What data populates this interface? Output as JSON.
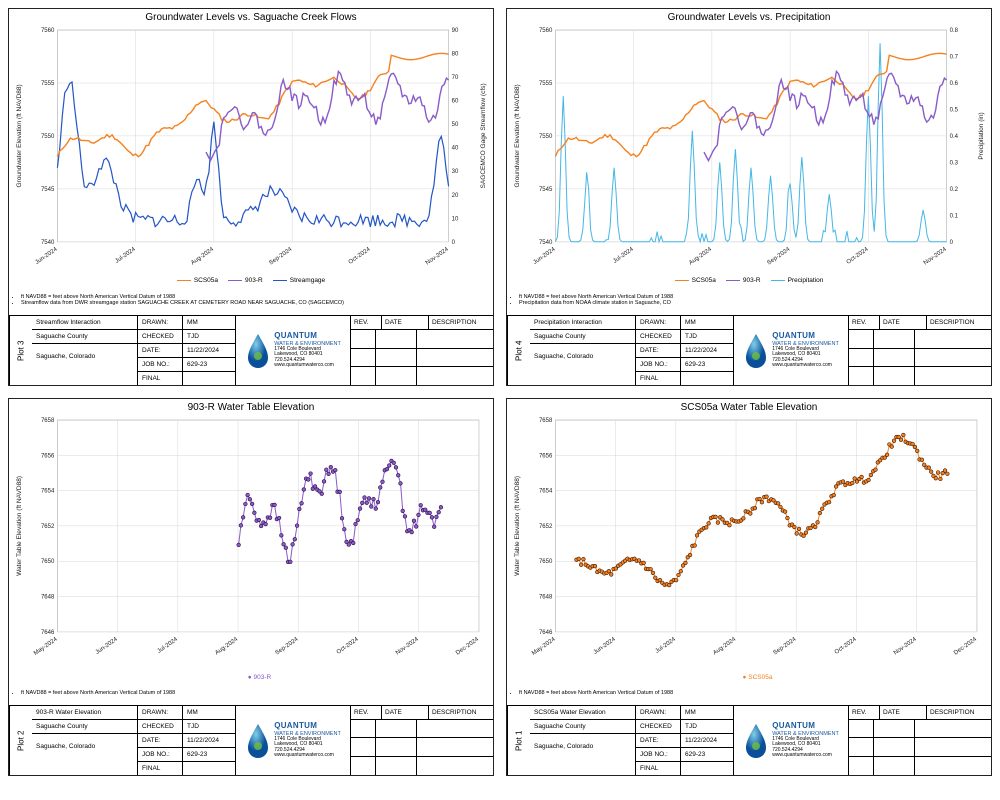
{
  "company": {
    "name": "QUANTUM",
    "subtitle": "WATER & ENVIRONMENT",
    "address1": "1746 Cole Boulevard",
    "address2": "Lakewood, CO 80401",
    "phone": "720.524.4294",
    "web": "www.quantumwaterco.com",
    "logo_gradient_inner": "#7fcfe8",
    "logo_gradient_outer": "#0a4f9a"
  },
  "meta_labels": {
    "drawn": "DRAWN:",
    "checked": "CHECKED",
    "date": "DATE:",
    "job": "JOB NO.:",
    "status_label": "FINAL",
    "rev": "REV.",
    "date2": "DATE",
    "desc": "DESCRIPTION"
  },
  "meta": {
    "drawn": "MM",
    "checked": "TJD",
    "date": "11/22/2024",
    "job": "629-23"
  },
  "project_line2": "Saguache County",
  "project_line3": "Saguache, Colorado",
  "footnote_navd": "ft NAVD88 = feet above North American Vertical Datum of 1988",
  "plot3": {
    "plotlabel": "Plot 3",
    "title": "Groundwater Levels vs. Saguache Creek Flows",
    "ylabel_left": "Groundwater Elevation (ft NAVD88)",
    "ylabel_right": "SAGCEMCO Gage Streamflow (cfs)",
    "ylim_left": [
      7540,
      7560
    ],
    "ytick_left": [
      7540,
      7545,
      7550,
      7555,
      7560
    ],
    "ylim_right": [
      0,
      90
    ],
    "ytick_right": [
      0,
      10,
      20,
      30,
      40,
      50,
      60,
      70,
      80,
      90
    ],
    "xticks": [
      "Jun-2024",
      "Jul-2024",
      "Aug-2024",
      "Sep-2024",
      "Oct-2024",
      "Nov-2024"
    ],
    "grid_color": "#d7d7d7",
    "background_color": "#ffffff",
    "series": {
      "scs05a": {
        "label": "SCS05a",
        "color": "#f58220",
        "width": 1.4
      },
      "r903": {
        "label": "903-R",
        "color": "#8a5cc8",
        "width": 1.4
      },
      "stream": {
        "label": "Streamgage",
        "color": "#2456c7",
        "width": 1.2
      }
    },
    "footnote2": "Streamflow data from DWR streamgage station SAGUACHE CREEK AT CEMETERY ROAD NEAR SAGUACHE, CO (SAGCEMCO)",
    "project_line1": "Streamflow Interaction"
  },
  "plot4": {
    "plotlabel": "Plot 4",
    "title": "Groundwater Levels vs. Precipitation",
    "ylabel_left": "Groundwater Elevation (ft NAVD88)",
    "ylabel_right": "Precipitation (in)",
    "ylim_left": [
      7540,
      7560
    ],
    "ytick_left": [
      7540,
      7545,
      7550,
      7555,
      7560
    ],
    "ylim_right": [
      0,
      0.8
    ],
    "ytick_right": [
      0,
      0.1,
      0.2,
      0.3,
      0.4,
      0.5,
      0.6,
      0.7,
      0.8
    ],
    "xticks": [
      "Jun-2024",
      "Jul-2024",
      "Aug-2024",
      "Sep-2024",
      "Oct-2024",
      "Nov-2024"
    ],
    "grid_color": "#d7d7d7",
    "series": {
      "scs05a": {
        "label": "SCS05a",
        "color": "#f58220",
        "width": 1.4
      },
      "r903": {
        "label": "903-R",
        "color": "#8a5cc8",
        "width": 1.4
      },
      "precip": {
        "label": "Precipitation",
        "color": "#45b7e6",
        "width": 1.0
      }
    },
    "footnote2": "Precipitation data from NOAA climate station in Saguache, CO",
    "project_line1": "Precipitation Interaction"
  },
  "plot2": {
    "plotlabel": "Plot 2",
    "title": "903-R Water Table Elevation",
    "ylabel_left": "Water Table Elevation\n(ft NAVD88)",
    "ylim_left": [
      7646,
      7658
    ],
    "ytick_left": [
      7646,
      7648,
      7650,
      7652,
      7654,
      7656,
      7658
    ],
    "xticks": [
      "May-2024",
      "Jun-2024",
      "Jul-2024",
      "Aug-2024",
      "Sep-2024",
      "Oct-2024",
      "Nov-2024",
      "Dec-2024"
    ],
    "grid_color": "#d7d7d7",
    "series": {
      "r903": {
        "label": "903-R",
        "color": "#8a5cc8",
        "marker_edge": "#2b0a45",
        "marker_size": 3
      }
    },
    "project_line1": "903-R Water Elevation"
  },
  "plot1": {
    "plotlabel": "Plot 1",
    "title": "SCS05a Water Table Elevation",
    "ylabel_left": "Water Table Elevation\n(ft NAVD88)",
    "ylim_left": [
      7646,
      7658
    ],
    "ytick_left": [
      7646,
      7648,
      7650,
      7652,
      7654,
      7656,
      7658
    ],
    "xticks": [
      "May-2024",
      "Jun-2024",
      "Jul-2024",
      "Aug-2024",
      "Sep-2024",
      "Oct-2024",
      "Nov-2024",
      "Dec-2024"
    ],
    "grid_color": "#d7d7d7",
    "series": {
      "scs05a": {
        "label": "SCS05a",
        "color": "#f58220",
        "marker_edge": "#401800",
        "marker_size": 3
      }
    },
    "project_line1": "SCS05a Water Elevation"
  }
}
